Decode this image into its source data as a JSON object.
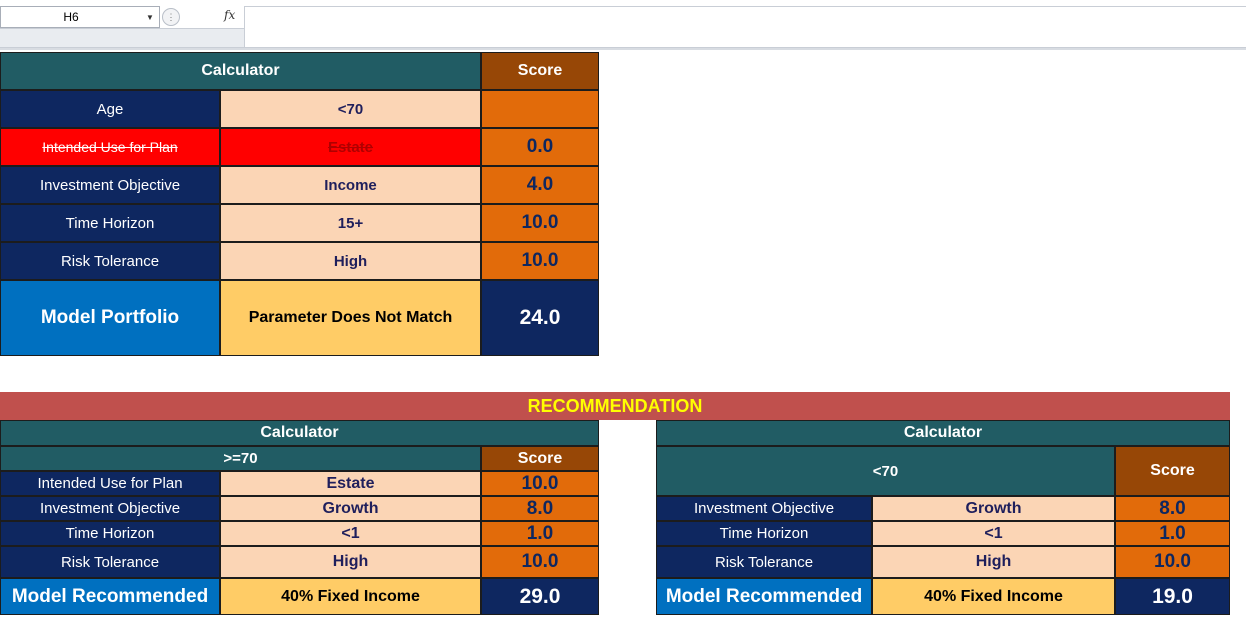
{
  "formula_bar": {
    "cell_ref": "H6",
    "fx_label": "fx"
  },
  "top_calculator": {
    "header_label": "Calculator",
    "score_label": "Score",
    "rows": [
      {
        "label": "Age",
        "value": "<70",
        "score": ""
      },
      {
        "label": "Intended Use for Plan",
        "value": "Estate",
        "score": "0.0"
      },
      {
        "label": "Investment Objective",
        "value": "Income",
        "score": "4.0"
      },
      {
        "label": "Time Horizon",
        "value": "15+",
        "score": "10.0"
      },
      {
        "label": "Risk Tolerance",
        "value": "High",
        "score": "10.0"
      }
    ],
    "model": {
      "label": "Model Portfolio",
      "value": "Parameter Does Not Match",
      "score": "24.0"
    }
  },
  "recommendation": {
    "title": "RECOMMENDATION",
    "left": {
      "header_label": "Calculator",
      "age_label": ">=70",
      "score_label": "Score",
      "rows": [
        {
          "label": "Intended Use for Plan",
          "value": "Estate",
          "score": "10.0"
        },
        {
          "label": "Investment Objective",
          "value": "Growth",
          "score": "8.0"
        },
        {
          "label": "Time Horizon",
          "value": "<1",
          "score": "1.0"
        },
        {
          "label": "Risk Tolerance",
          "value": "High",
          "score": "10.0"
        }
      ],
      "model": {
        "label": "Model Recommended",
        "value": "40% Fixed Income",
        "score": "29.0"
      }
    },
    "right": {
      "header_label": "Calculator",
      "age_label": "<70",
      "score_label": "Score",
      "rows": [
        {
          "label": "Investment Objective",
          "value": "Growth",
          "score": "8.0"
        },
        {
          "label": "Time Horizon",
          "value": "<1",
          "score": "1.0"
        },
        {
          "label": "Risk Tolerance",
          "value": "High",
          "score": "10.0"
        }
      ],
      "model": {
        "label": "Model Recommended",
        "value": "40% Fixed Income",
        "score": "19.0"
      }
    }
  },
  "colors": {
    "header_teal": "#215c64",
    "score_brown": "#974706",
    "label_navy": "#0e2760",
    "value_peach": "#fbd5b5",
    "score_orange": "#e26b0a",
    "alert_red": "#ff0000",
    "model_blue": "#0070c0",
    "model_gold": "#ffcc66",
    "banner_red": "#c0504d",
    "banner_text": "#ffff00"
  }
}
